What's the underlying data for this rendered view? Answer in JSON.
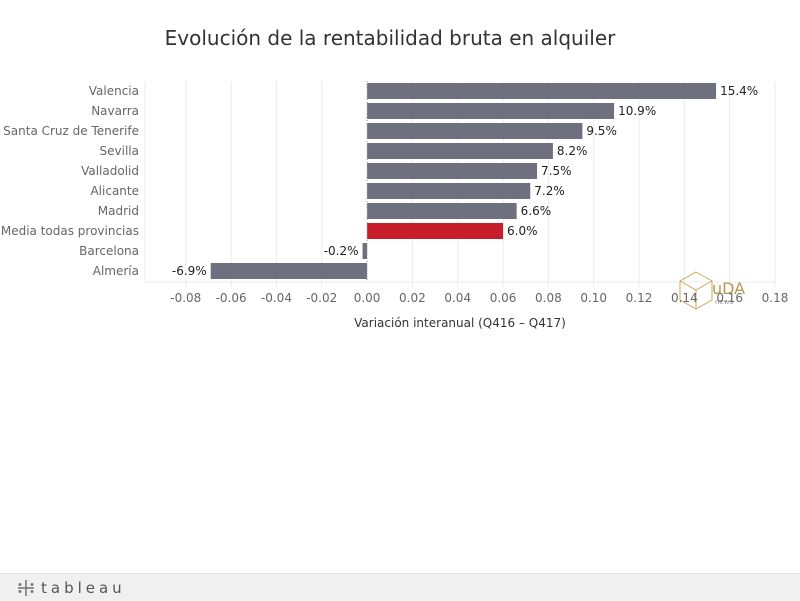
{
  "chart_data": {
    "type": "bar",
    "orientation": "horizontal",
    "title": "Evolución de la rentabilidad bruta en alquiler",
    "xlabel": "Variación interanual (Q416 – Q417)",
    "ylabel": "",
    "categories": [
      "Valencia",
      "Navarra",
      "Santa Cruz de Tenerife",
      "Sevilla",
      "Valladolid",
      "Alicante",
      "Madrid",
      "Media todas provincias",
      "Barcelona",
      "Almería"
    ],
    "values": [
      0.154,
      0.109,
      0.095,
      0.082,
      0.075,
      0.072,
      0.066,
      0.06,
      -0.002,
      -0.069
    ],
    "data_labels": [
      "15.4%",
      "10.9%",
      "9.5%",
      "8.2%",
      "7.5%",
      "7.2%",
      "6.6%",
      "6.0%",
      "-0.2%",
      "-6.9%"
    ],
    "highlight": [
      "Media todas provincias"
    ],
    "xlim": [
      -0.098,
      0.18
    ],
    "ticks": [
      -0.08,
      -0.06,
      -0.04,
      -0.02,
      0.0,
      0.02,
      0.04,
      0.06,
      0.08,
      0.1,
      0.12,
      0.14,
      0.16,
      0.18
    ],
    "tick_labels": [
      "-0.08",
      "-0.06",
      "-0.04",
      "-0.02",
      "0.00",
      "0.02",
      "0.04",
      "0.06",
      "0.08",
      "0.10",
      "0.12",
      "0.14",
      "0.16",
      "0.18"
    ],
    "grid": true,
    "colors": {
      "bar": "#6e7080",
      "highlight": "#c81e2b",
      "grid": "#ebebeb",
      "zero_line": "#999999"
    }
  },
  "watermark": {
    "text": "uDA",
    "subtext": "news"
  },
  "footer": {
    "brand": "tableau"
  }
}
